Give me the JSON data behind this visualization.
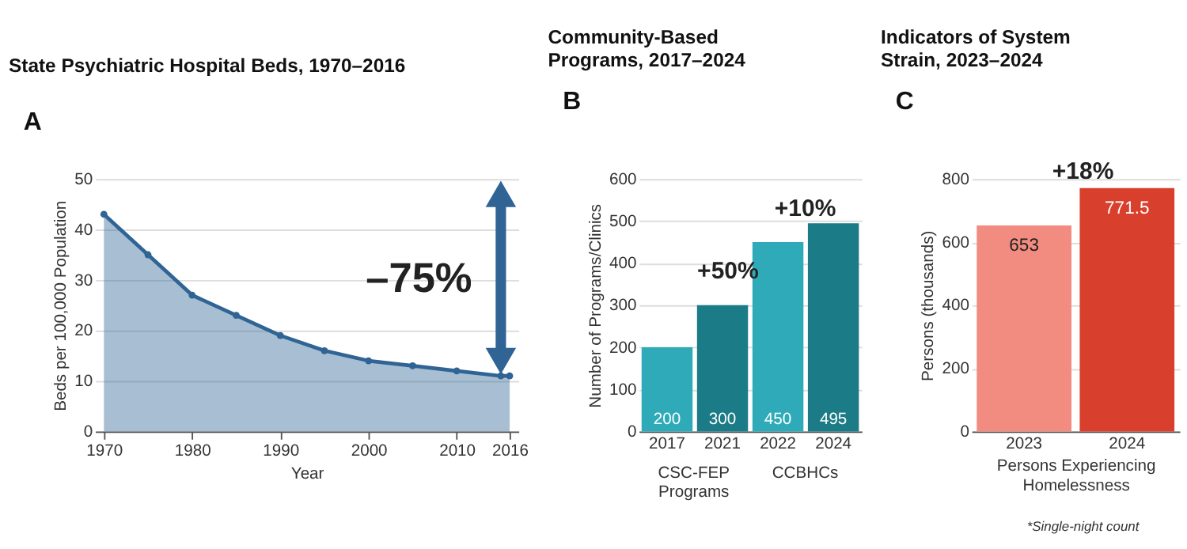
{
  "chart_data": [
    {
      "type": "area",
      "title": "State Psychiatric Hospital Beds, 1970–2016",
      "xlabel": "Year",
      "ylabel": "Beds per 100,000 Population",
      "x": [
        1970,
        1975,
        1980,
        1985,
        1990,
        1995,
        2000,
        2005,
        2010,
        2015,
        2016
      ],
      "series": [
        {
          "color": "#2f6494",
          "values": [
            43,
            35,
            27,
            23,
            19,
            16,
            14,
            13,
            12,
            11,
            11
          ]
        }
      ],
      "xlim": [
        1969,
        2017
      ],
      "xticks": [
        1970,
        1980,
        1990,
        2000,
        2010,
        2016
      ],
      "ylim": [
        0,
        50
      ],
      "yticks": [
        0,
        10,
        20,
        30,
        40,
        50
      ],
      "grid": "y",
      "marker": "circle",
      "annotations": [
        "A",
        "–75%"
      ]
    },
    {
      "type": "bar",
      "title": "Community-Based Programs, 2017–2024",
      "ylabel": "Number of Programs/Clinics",
      "categories": [
        "2017",
        "2021",
        "2022",
        "2024"
      ],
      "values": [
        200,
        300,
        450,
        495
      ],
      "colors": [
        "#2eaab8",
        "#1b7b86",
        "#2eaab8",
        "#1b7b86"
      ],
      "ylim": [
        0,
        600
      ],
      "yticks": [
        0,
        100,
        200,
        300,
        400,
        500,
        600
      ],
      "grid": "y",
      "data_labels": true,
      "annotations": [
        "B",
        "+50%",
        "+10%",
        "CSC-FEP Programs",
        "CCBHCs"
      ]
    },
    {
      "type": "bar",
      "title": "Indicators of System Strain, 2023–2024",
      "xlabel": "Persons Experiencing Homelessness",
      "ylabel": "Persons (thousands)",
      "categories": [
        "2023",
        "2024"
      ],
      "values": [
        653,
        771.5
      ],
      "colors": [
        "#f28b80",
        "#d8402d"
      ],
      "ylim": [
        0,
        800
      ],
      "yticks": [
        0,
        200,
        400,
        600,
        800
      ],
      "grid": "y",
      "data_labels": true,
      "annotations": [
        "C",
        "+18%",
        "*Single-night count"
      ]
    }
  ]
}
